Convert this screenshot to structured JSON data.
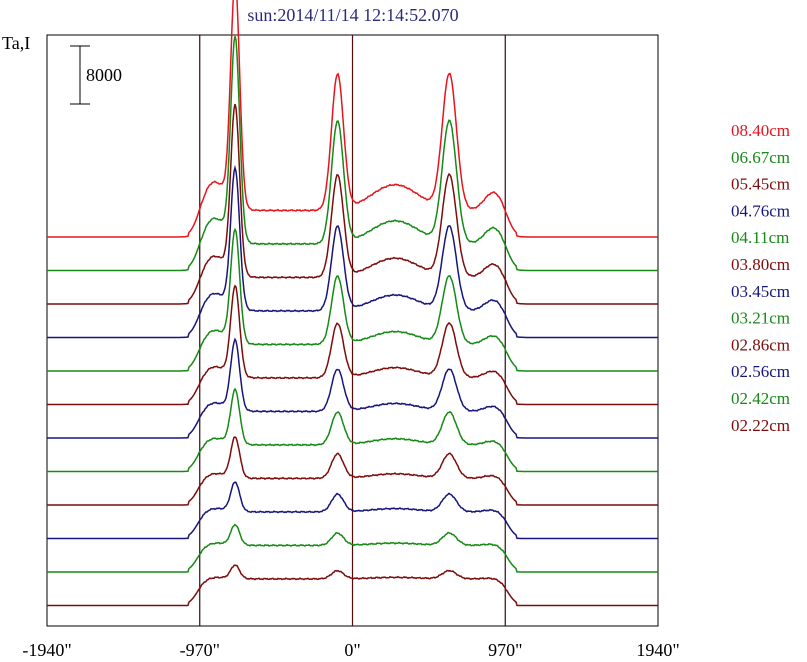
{
  "chart_data": {
    "type": "line",
    "title": "sun:2014/11/14 12:14:52.070",
    "ylabel": "Ta,I",
    "scale_bar_label": "8000",
    "x_ticks": [
      {
        "value": -1940,
        "label": "-1940\""
      },
      {
        "value": -970,
        "label": "-970\""
      },
      {
        "value": 0,
        "label": "0\""
      },
      {
        "value": 970,
        "label": "970\""
      },
      {
        "value": 1940,
        "label": "1940\""
      }
    ],
    "xlim": [
      -1940,
      1940
    ],
    "vertical_lines": [
      -970,
      0,
      970
    ],
    "scale_bar_value": 8000,
    "series": [
      {
        "name": "08.40cm",
        "color": "#e8141c",
        "baseline": 0,
        "peak": 1.0
      },
      {
        "name": "06.67cm",
        "color": "#158a15",
        "baseline": -1.1,
        "peak": 0.9
      },
      {
        "name": "05.45cm",
        "color": "#7d0c0c",
        "baseline": -2.3,
        "peak": 0.75
      },
      {
        "name": "04.76cm",
        "color": "#16167a",
        "baseline": -3.4,
        "peak": 0.62
      },
      {
        "name": "04.11cm",
        "color": "#158a15",
        "baseline": -4.5,
        "peak": 0.5
      },
      {
        "name": "03.80cm",
        "color": "#7d0c0c",
        "baseline": -5.6,
        "peak": 0.4
      },
      {
        "name": "03.45cm",
        "color": "#16167a",
        "baseline": -6.8,
        "peak": 0.31
      },
      {
        "name": "03.21cm",
        "color": "#158a15",
        "baseline": -7.9,
        "peak": 0.24
      },
      {
        "name": "02.86cm",
        "color": "#7d0c0c",
        "baseline": -9.0,
        "peak": 0.18
      },
      {
        "name": "02.56cm",
        "color": "#16167a",
        "baseline": -10.1,
        "peak": 0.13
      },
      {
        "name": "02.42cm",
        "color": "#158a15",
        "baseline": -11.2,
        "peak": 0.09
      },
      {
        "name": "02.22cm",
        "color": "#7d0c0c",
        "baseline": -12.4,
        "peak": 0.06
      }
    ]
  }
}
